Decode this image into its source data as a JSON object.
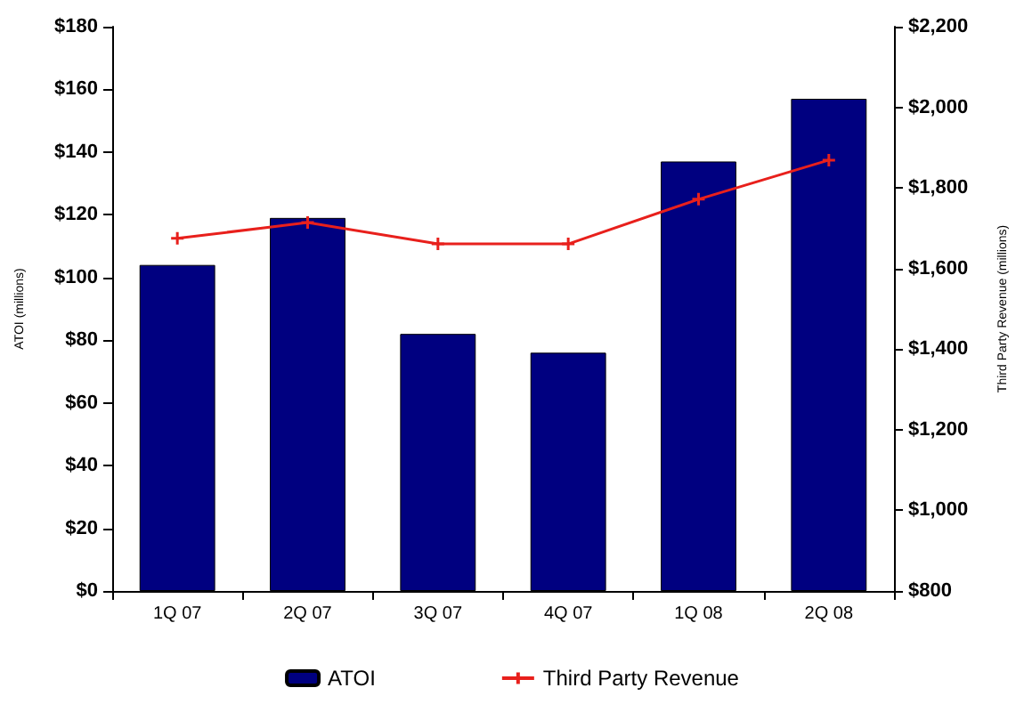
{
  "chart_data": {
    "type": "bar",
    "categories": [
      "1Q 07",
      "2Q 07",
      "3Q 07",
      "4Q 07",
      "1Q 08",
      "2Q 08"
    ],
    "series": [
      {
        "name": "ATOI",
        "color": "#000080",
        "values": [
          104,
          119,
          82,
          76,
          137,
          157
        ]
      },
      {
        "name": "Third Party Revenue",
        "type": "line",
        "axis": "y2",
        "color": "#e8201c",
        "values": [
          1675,
          1714,
          1661,
          1661,
          1772,
          1869
        ]
      }
    ],
    "ylabel": "ATOI (millions)",
    "y2label": "Third Party Revenue (millions)",
    "ylim": [
      0,
      180
    ],
    "yticks": [
      {
        "value": 0,
        "label": "$0"
      },
      {
        "value": 20,
        "label": "$20"
      },
      {
        "value": 40,
        "label": "$40"
      },
      {
        "value": 60,
        "label": "$60"
      },
      {
        "value": 80,
        "label": "$80"
      },
      {
        "value": 100,
        "label": "$100"
      },
      {
        "value": 120,
        "label": "$120"
      },
      {
        "value": 140,
        "label": "$140"
      },
      {
        "value": 160,
        "label": "$160"
      },
      {
        "value": 180,
        "label": "$180"
      }
    ],
    "y2lim": [
      800,
      2200
    ],
    "y2ticks": [
      {
        "value": 800,
        "label": "$800"
      },
      {
        "value": 1000,
        "label": "$1,000"
      },
      {
        "value": 1200,
        "label": "$1,200"
      },
      {
        "value": 1400,
        "label": "$1,400"
      },
      {
        "value": 1600,
        "label": "$1,600"
      },
      {
        "value": 1800,
        "label": "$1,800"
      },
      {
        "value": 2000,
        "label": "$2,000"
      },
      {
        "value": 2200,
        "label": "$2,200"
      }
    ],
    "legend": "bottom",
    "marker": "cross",
    "grid": false
  }
}
